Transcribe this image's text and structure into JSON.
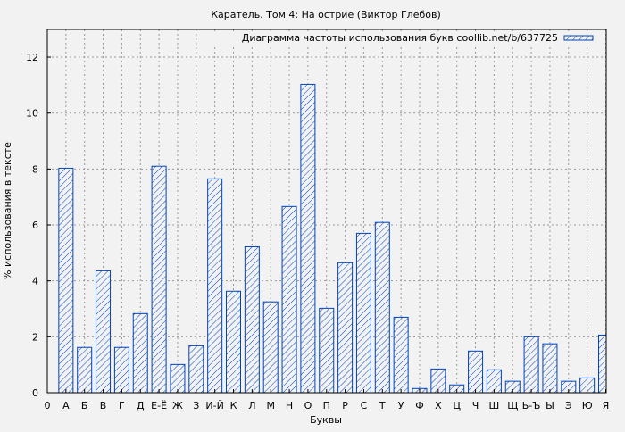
{
  "chart_data": {
    "type": "bar",
    "title": "Каратель. Том 4: На острие (Виктор Глебов)",
    "xlabel": "Буквы",
    "ylabel": "% использования в тексте",
    "legend": {
      "label": "Диаграмма частоты использования букв coollib.net/b/637725",
      "position": "top-right"
    },
    "x_tick_zero": "0",
    "categories": [
      "А",
      "Б",
      "В",
      "Г",
      "Д",
      "Е-Ё",
      "Ж",
      "З",
      "И-Й",
      "К",
      "Л",
      "М",
      "Н",
      "О",
      "П",
      "Р",
      "С",
      "Т",
      "У",
      "Ф",
      "Х",
      "Ц",
      "Ч",
      "Ш",
      "Щ",
      "Ь-Ъ",
      "Ы",
      "Э",
      "Ю",
      "Я"
    ],
    "values": [
      8.03,
      1.62,
      4.36,
      1.62,
      2.83,
      8.1,
      1.01,
      1.68,
      7.65,
      3.63,
      5.22,
      3.25,
      6.66,
      11.03,
      3.02,
      4.65,
      5.7,
      6.09,
      2.7,
      0.15,
      0.85,
      0.28,
      1.49,
      0.82,
      0.41,
      2.0,
      1.75,
      0.41,
      0.53,
      2.06
    ],
    "ylim": [
      0,
      13
    ],
    "yticks": [
      0,
      2,
      4,
      6,
      8,
      10,
      12
    ],
    "grid": true,
    "bar_color": "#0044bb",
    "hatch": "diagonal"
  }
}
